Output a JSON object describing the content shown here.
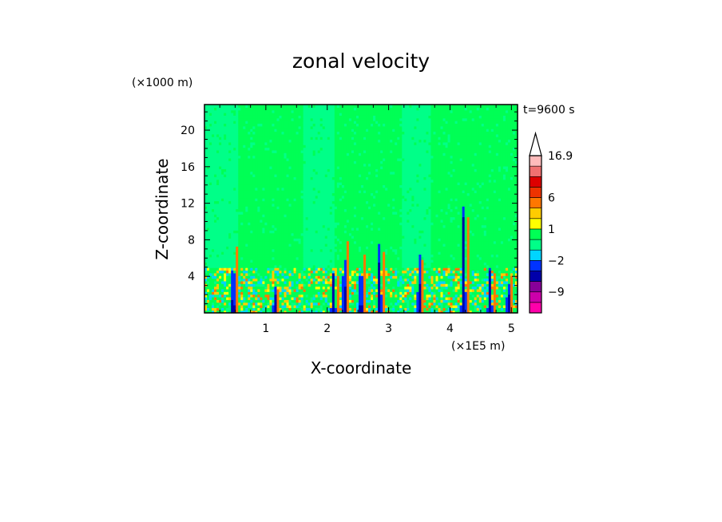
{
  "chart_data": {
    "type": "heatmap",
    "title": "zonal velocity",
    "time_label": "t=9600 s",
    "xlabel": "X-coordinate",
    "ylabel": "Z-coordinate",
    "x_unit": "(×1E5 m)",
    "y_unit": "(×1000 m)",
    "xlim": [
      0,
      5.1
    ],
    "ylim": [
      0,
      22.8
    ],
    "x_ticks": [
      1,
      2,
      3,
      4,
      5
    ],
    "y_ticks": [
      4,
      8,
      12,
      16,
      20
    ],
    "colorbar": {
      "levels": [
        -15,
        -12,
        -9,
        -6,
        -3,
        -2,
        -1,
        0,
        1,
        2,
        3,
        6,
        9,
        12,
        15,
        16.9
      ],
      "labels": [
        {
          "value": 16.9,
          "text": "16.9"
        },
        {
          "value": 6,
          "text": "6"
        },
        {
          "value": 1,
          "text": "1"
        },
        {
          "value": -2,
          "text": "−2"
        },
        {
          "value": -9,
          "text": "−9"
        }
      ],
      "colors": [
        "#ff00aa",
        "#cc00aa",
        "#880099",
        "#0000aa",
        "#0033ff",
        "#00d5ff",
        "#00ff88",
        "#00ff55",
        "#ffff00",
        "#ffcc00",
        "#ff7700",
        "#ee3300",
        "#dd0000",
        "#f07070",
        "#ffbbbb"
      ],
      "extend_top": true
    },
    "field_description": {
      "dominant_upper": [
        {
          "x_start": 0.0,
          "x_end": 0.55,
          "value": -0.5
        },
        {
          "x_start": 0.55,
          "x_end": 1.6,
          "value": 0.5
        },
        {
          "x_start": 1.6,
          "x_end": 2.1,
          "value": -0.5
        },
        {
          "x_start": 2.1,
          "x_end": 3.2,
          "value": 0.5
        },
        {
          "x_start": 3.2,
          "x_end": 3.7,
          "value": -0.5
        },
        {
          "x_start": 3.7,
          "x_end": 4.5,
          "value": 0.5
        },
        {
          "x_start": 4.5,
          "x_end": 5.1,
          "value": 0.5
        }
      ],
      "jets": [
        {
          "x": 0.47,
          "top": 8.2,
          "value": -6
        },
        {
          "x": 1.15,
          "top": 3.0,
          "value": -6
        },
        {
          "x": 2.1,
          "top": 4.5,
          "value": -6
        },
        {
          "x": 2.28,
          "top": 8.8,
          "value": -6
        },
        {
          "x": 2.55,
          "top": 7.2,
          "value": -6
        },
        {
          "x": 2.85,
          "top": 7.5,
          "value": -6
        },
        {
          "x": 3.5,
          "top": 6.5,
          "value": -6
        },
        {
          "x": 4.22,
          "top": 11.8,
          "value": -6
        },
        {
          "x": 4.65,
          "top": 5.0,
          "value": -6
        },
        {
          "x": 4.95,
          "top": 4.5,
          "value": -6
        }
      ]
    }
  }
}
